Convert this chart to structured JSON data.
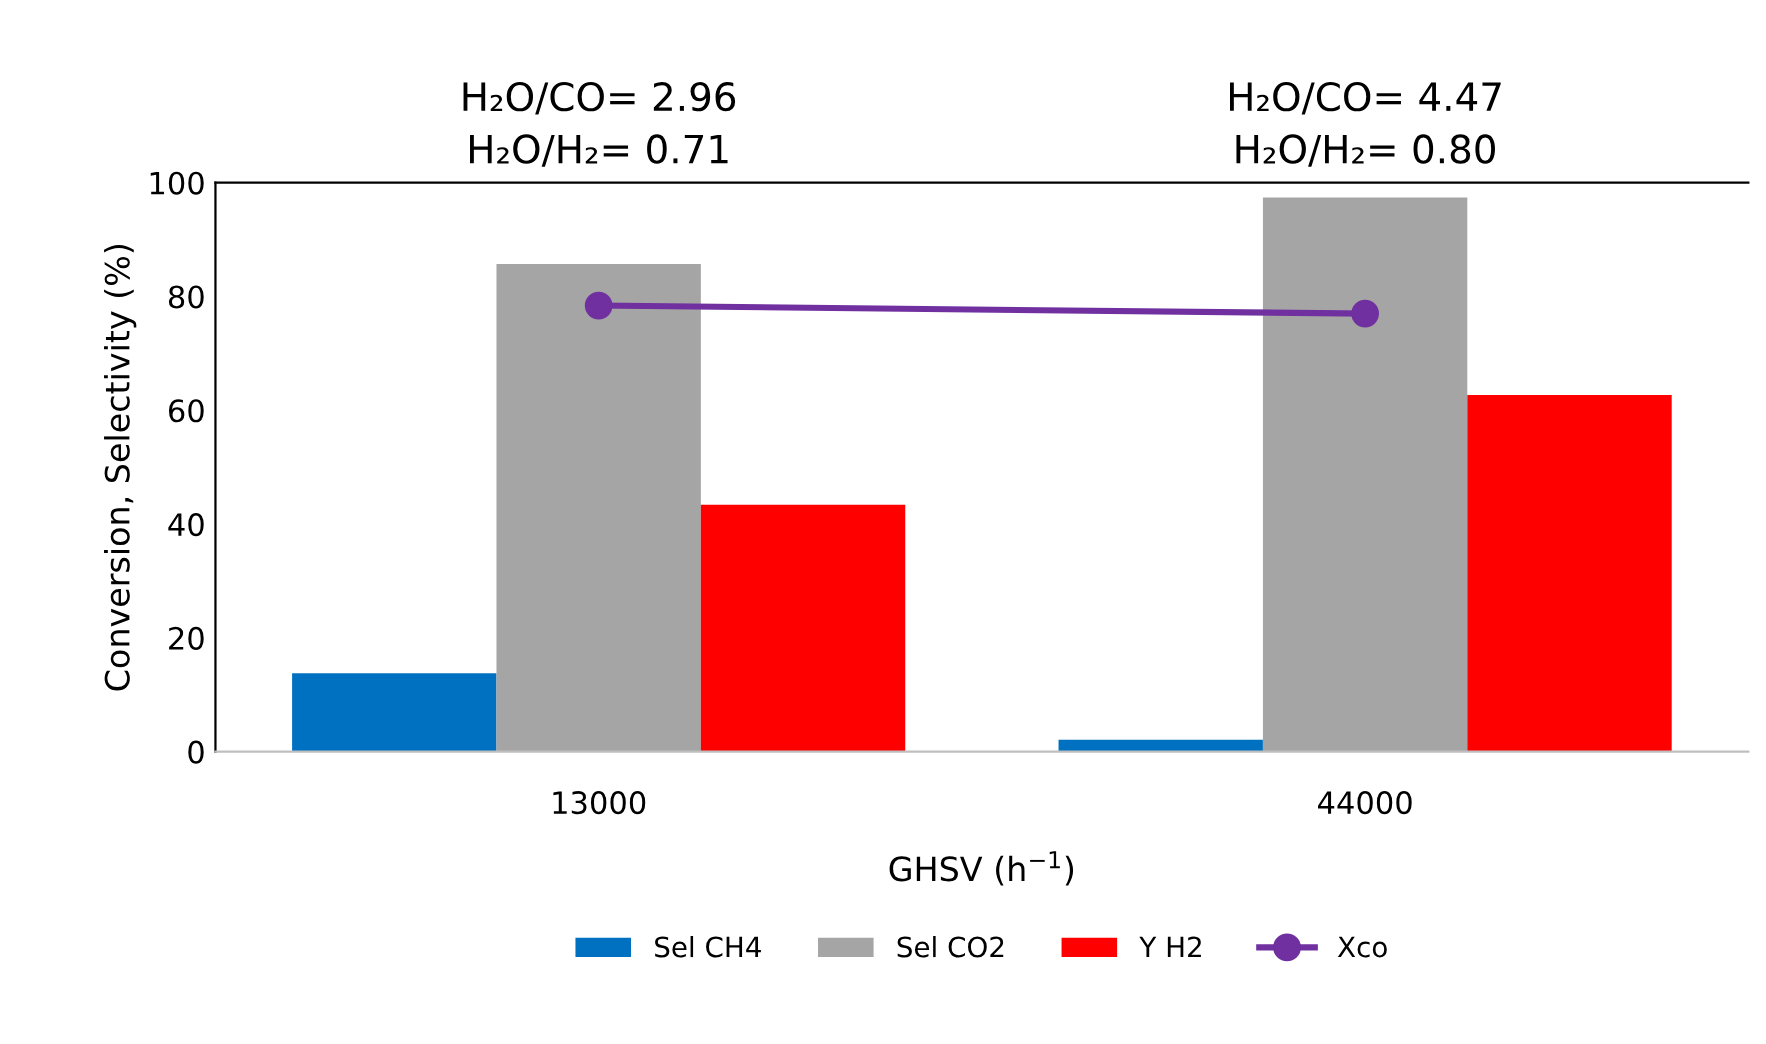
{
  "chart_data": {
    "type": "bar",
    "categories": [
      "13000",
      "44000"
    ],
    "xlabel": "GHSV (h$^{−1}$)",
    "ylabel": "Conversion, Selectivity (%)",
    "ylim": [
      0,
      100
    ],
    "yticks": [
      0,
      20,
      40,
      60,
      80,
      100
    ],
    "grid": false,
    "legend": "bottom",
    "series": [
      {
        "name": "Sel CH4",
        "color": "#0070c0",
        "values": [
          13.8,
          2.1
        ]
      },
      {
        "name": "Sel CO2",
        "color": "#a5a5a5",
        "values": [
          85.7,
          97.4
        ]
      },
      {
        "name": "Y H2",
        "color": "#ff0000",
        "values": [
          43.4,
          62.7
        ]
      },
      {
        "name": "Xco",
        "color": "#7030a0",
        "type": "line",
        "marker": "circle",
        "values": [
          78.4,
          77.0
        ]
      }
    ],
    "annotations": [
      "H₂O/CO= 2.96\nH₂O/H₂= 0.71",
      "H₂O/CO= 4.47\nH₂O/H₂= 0.80"
    ]
  }
}
